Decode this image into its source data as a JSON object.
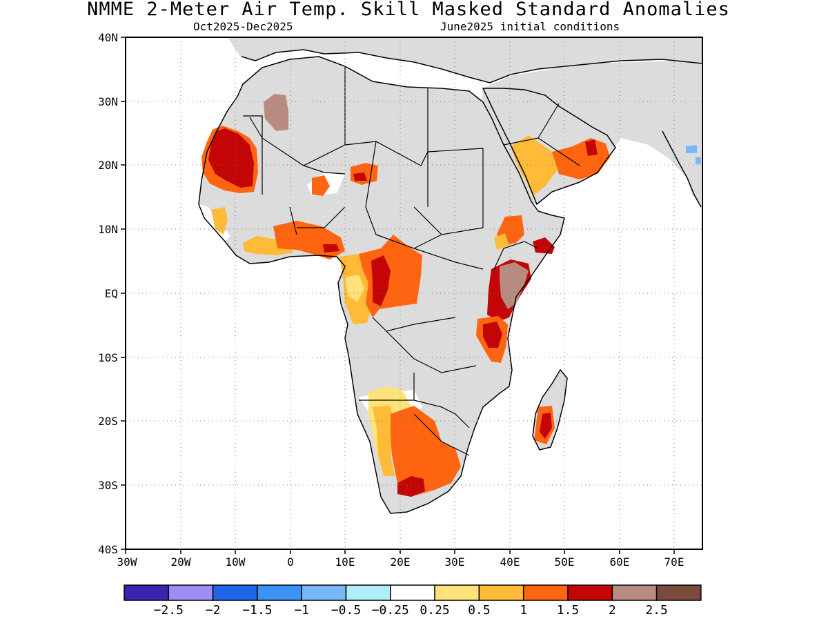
{
  "header": {
    "title": "NMME 2-Meter Air Temp. Skill Masked Standard Anomalies",
    "period": "Oct2025-Dec2025",
    "init": "June2025 initial conditions"
  },
  "map": {
    "region": "Africa",
    "lon_range": [
      -30,
      75
    ],
    "lat_range": [
      -40,
      40
    ],
    "lon_ticks": [
      "30W",
      "20W",
      "10W",
      "0",
      "10E",
      "20E",
      "30E",
      "40E",
      "50E",
      "60E",
      "70E"
    ],
    "lat_ticks": [
      "40N",
      "30N",
      "20N",
      "10N",
      "EQ",
      "10S",
      "20S",
      "30S",
      "40S"
    ],
    "land_color": "#dcdcdc",
    "masked_color": "#ffffff"
  },
  "legend": {
    "colors": [
      "#3a23b0",
      "#9d8ef5",
      "#1d64e6",
      "#3c93f5",
      "#78b8f7",
      "#b0eefb",
      "#ffffff",
      "#ffe27a",
      "#ffbb38",
      "#ff6510",
      "#c40505",
      "#b88b80",
      "#7a4a3d"
    ],
    "labels": [
      "-2.5",
      "-2",
      "-1.5",
      "-1",
      "-0.5",
      "-0.25",
      "0.25",
      "0.5",
      "1",
      "1.5",
      "2",
      "2.5"
    ]
  },
  "anomaly_regions": [
    {
      "name": "mauritania",
      "level": "2"
    },
    {
      "name": "south-africa",
      "level": "2"
    },
    {
      "name": "kenya",
      "level": "2.5"
    },
    {
      "name": "arabian-peninsula",
      "level": "1.5"
    },
    {
      "name": "central-africa",
      "level": "1.5"
    }
  ]
}
